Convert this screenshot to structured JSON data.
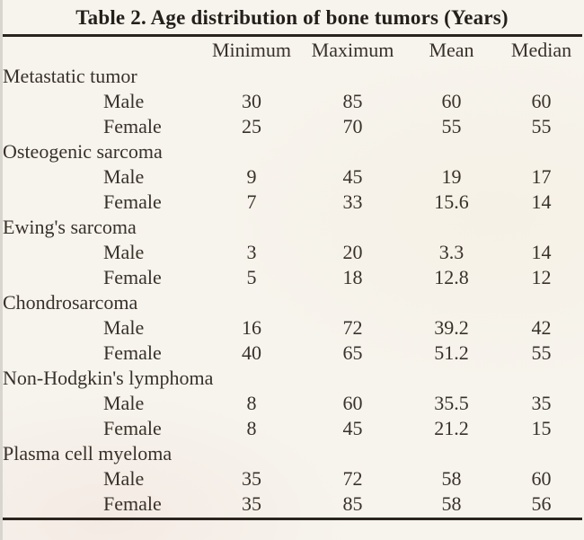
{
  "title": "Table 2. Age distribution of bone tumors (Years)",
  "columns": [
    "Minimum",
    "Maximum",
    "Mean",
    "Median"
  ],
  "sections": [
    {
      "name": "Metastatic tumor",
      "rows": [
        {
          "label": "Male",
          "values": [
            "30",
            "85",
            "60",
            "60"
          ]
        },
        {
          "label": "Female",
          "values": [
            "25",
            "70",
            "55",
            "55"
          ]
        }
      ]
    },
    {
      "name": "Osteogenic sarcoma",
      "rows": [
        {
          "label": "Male",
          "values": [
            "9",
            "45",
            "19",
            "17"
          ]
        },
        {
          "label": "Female",
          "values": [
            "7",
            "33",
            "15.6",
            "14"
          ]
        }
      ]
    },
    {
      "name": "Ewing's sarcoma",
      "rows": [
        {
          "label": "Male",
          "values": [
            "3",
            "20",
            "3.3",
            "14"
          ]
        },
        {
          "label": "Female",
          "values": [
            "5",
            "18",
            "12.8",
            "12"
          ]
        }
      ]
    },
    {
      "name": "Chondrosarcoma",
      "rows": [
        {
          "label": "Male",
          "values": [
            "16",
            "72",
            "39.2",
            "42"
          ]
        },
        {
          "label": "Female",
          "values": [
            "40",
            "65",
            "51.2",
            "55"
          ]
        }
      ]
    },
    {
      "name": "Non-Hodgkin's lymphoma",
      "rows": [
        {
          "label": "Male",
          "values": [
            "8",
            "60",
            "35.5",
            "35"
          ]
        },
        {
          "label": "Female",
          "values": [
            "8",
            "45",
            "21.2",
            "15"
          ]
        }
      ]
    },
    {
      "name": "Plasma cell myeloma",
      "rows": [
        {
          "label": "Male",
          "values": [
            "35",
            "72",
            "58",
            "60"
          ]
        },
        {
          "label": "Female",
          "values": [
            "35",
            "85",
            "58",
            "56"
          ]
        }
      ]
    }
  ],
  "colors": {
    "background": "#f7f4ee",
    "text": "#38312a",
    "title_text": "#241f1a",
    "rule": "#2b241e",
    "scan_edge": "#d8d5cf"
  }
}
